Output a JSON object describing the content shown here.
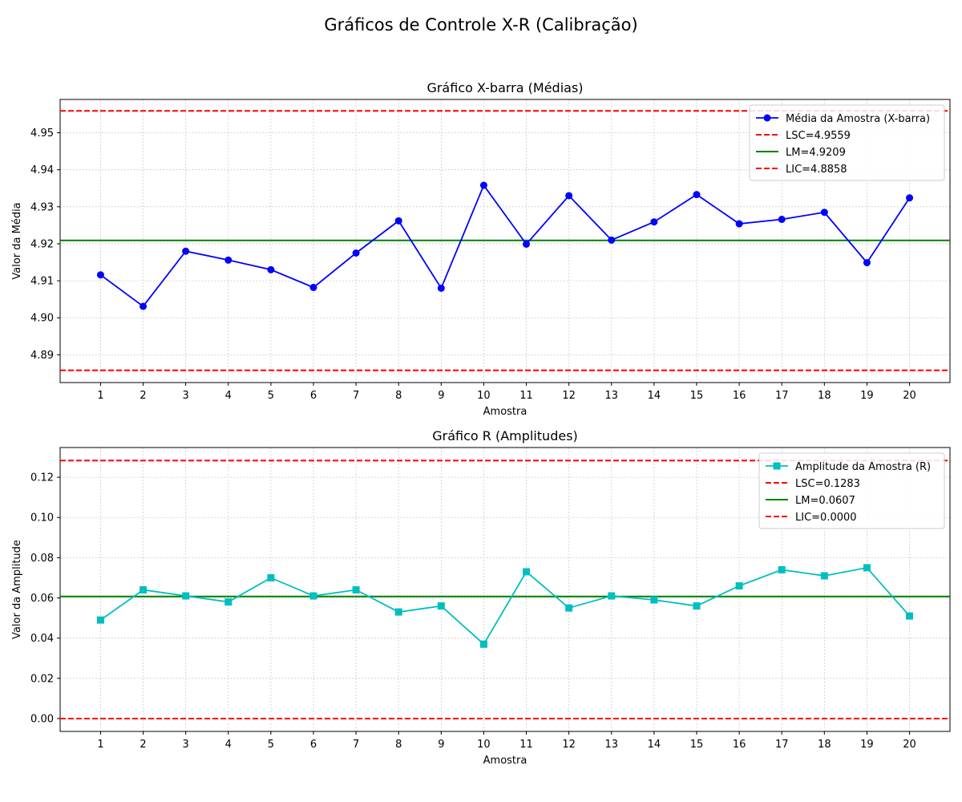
{
  "figure": {
    "suptitle": "Gráficos de Controle X-R (Calibração)"
  },
  "chart_data": [
    {
      "type": "line",
      "title": "Gráfico X-barra (Médias)",
      "xlabel": "Amostra",
      "ylabel": "Valor da Média",
      "x": [
        1,
        2,
        3,
        4,
        5,
        6,
        7,
        8,
        9,
        10,
        11,
        12,
        13,
        14,
        15,
        16,
        17,
        18,
        19,
        20
      ],
      "xlim": [
        0.05,
        20.95
      ],
      "ylim": [
        4.8825,
        4.959
      ],
      "yticks": [
        "4.89",
        "4.90",
        "4.91",
        "4.92",
        "4.93",
        "4.94",
        "4.95"
      ],
      "ytick_values": [
        4.89,
        4.9,
        4.91,
        4.92,
        4.93,
        4.94,
        4.95
      ],
      "grid": true,
      "legend_position": "top-right",
      "series": [
        {
          "name": "Média da Amostra (X-barra)",
          "color": "#0000ff",
          "marker": "circle",
          "values": [
            4.9116,
            4.9031,
            4.918,
            4.9156,
            4.913,
            4.9082,
            4.9175,
            4.9262,
            4.908,
            4.9358,
            4.9199,
            4.933,
            4.921,
            4.9259,
            4.9333,
            4.9254,
            4.9266,
            4.9285,
            4.9149,
            4.9324
          ]
        }
      ],
      "hlines": [
        {
          "name": "LSC=4.9559",
          "value": 4.9559,
          "color": "#ff0000",
          "style": "dashed"
        },
        {
          "name": "LM=4.9209",
          "value": 4.9209,
          "color": "#008000",
          "style": "solid"
        },
        {
          "name": "LIC=4.8858",
          "value": 4.8858,
          "color": "#ff0000",
          "style": "dashed"
        }
      ]
    },
    {
      "type": "line",
      "title": "Gráfico R (Amplitudes)",
      "xlabel": "Amostra",
      "ylabel": "Valor da Amplitude",
      "x": [
        1,
        2,
        3,
        4,
        5,
        6,
        7,
        8,
        9,
        10,
        11,
        12,
        13,
        14,
        15,
        16,
        17,
        18,
        19,
        20
      ],
      "xlim": [
        0.05,
        20.95
      ],
      "ylim": [
        -0.0064,
        0.1348
      ],
      "yticks": [
        "0.00",
        "0.02",
        "0.04",
        "0.06",
        "0.08",
        "0.10",
        "0.12"
      ],
      "ytick_values": [
        0,
        0.02,
        0.04,
        0.06,
        0.08,
        0.1,
        0.12
      ],
      "grid": true,
      "legend_position": "top-right",
      "series": [
        {
          "name": "Amplitude da Amostra (R)",
          "color": "#00bfbf",
          "marker": "square",
          "values": [
            0.049,
            0.064,
            0.061,
            0.058,
            0.07,
            0.061,
            0.064,
            0.053,
            0.056,
            0.037,
            0.073,
            0.055,
            0.061,
            0.059,
            0.056,
            0.066,
            0.074,
            0.071,
            0.075,
            0.051
          ]
        }
      ],
      "hlines": [
        {
          "name": "LSC=0.1283",
          "value": 0.1283,
          "color": "#ff0000",
          "style": "dashed"
        },
        {
          "name": "LM=0.0607",
          "value": 0.0607,
          "color": "#008000",
          "style": "solid"
        },
        {
          "name": "LIC=0.0000",
          "value": 0.0,
          "color": "#ff0000",
          "style": "dashed"
        }
      ]
    }
  ]
}
